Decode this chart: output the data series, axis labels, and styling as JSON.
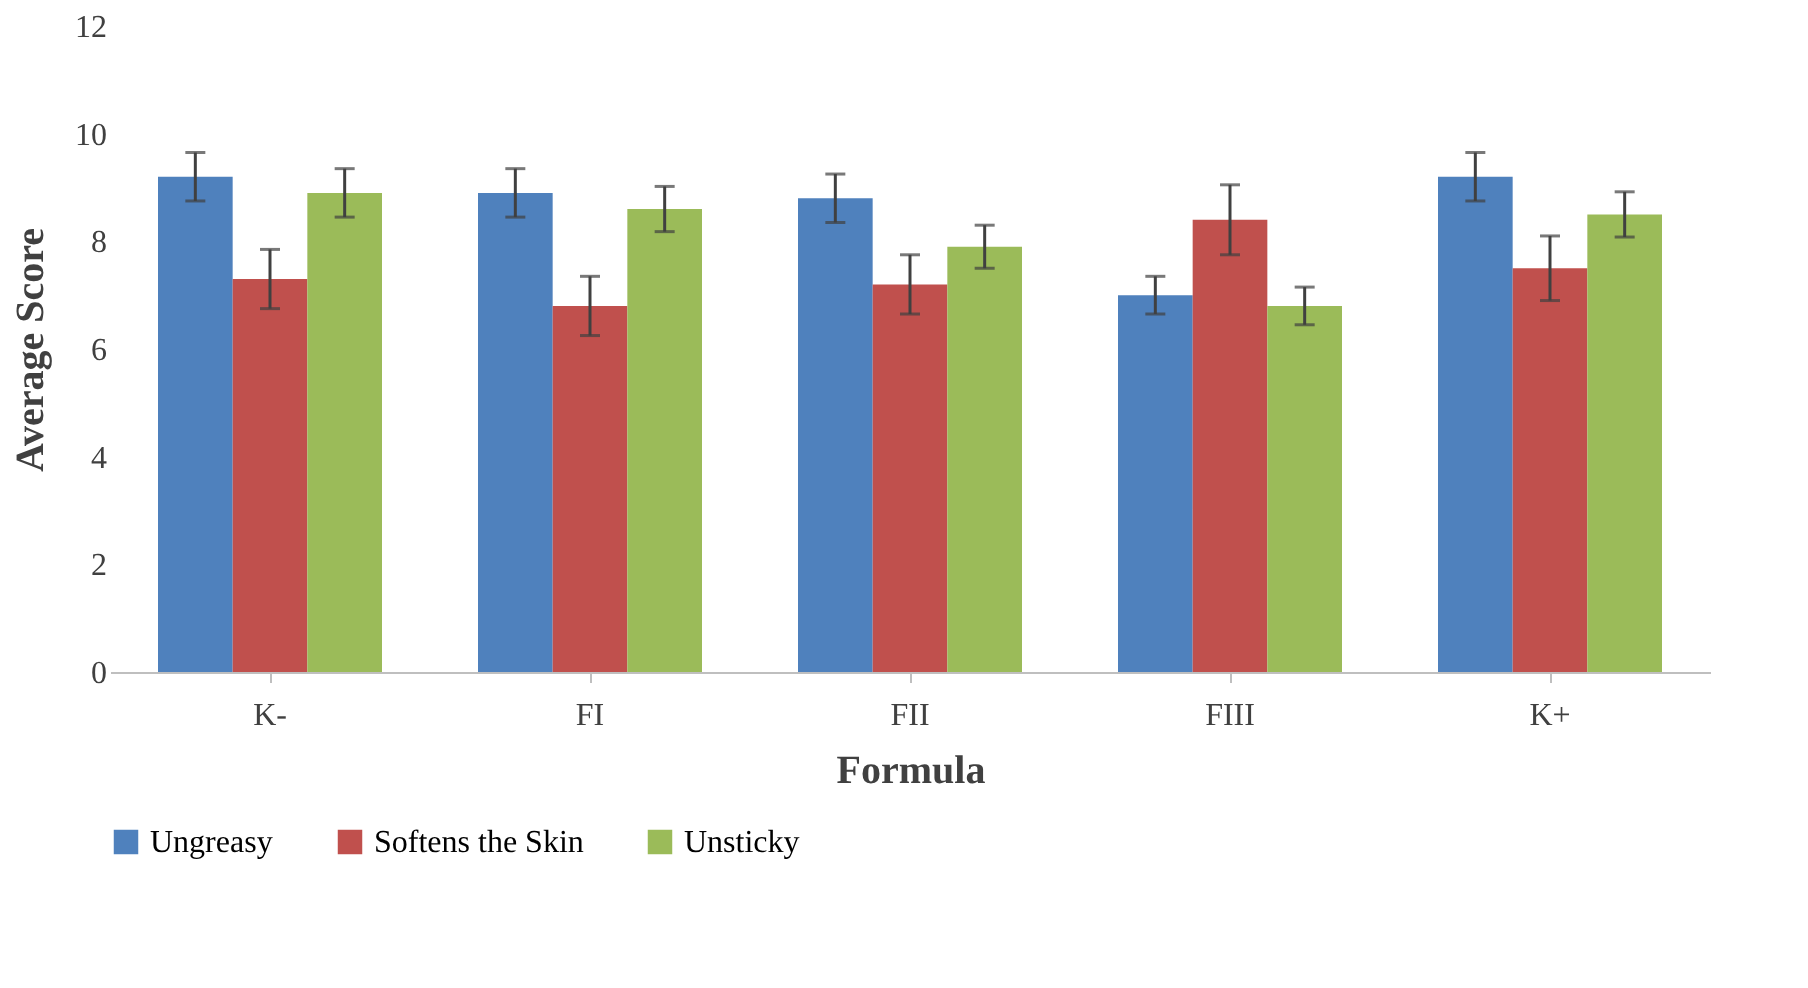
{
  "chart_data": {
    "type": "bar",
    "xlabel": "Formula",
    "ylabel": "Average Score",
    "categories": [
      "K-",
      "FI",
      "FII",
      "FIII",
      "K+"
    ],
    "series": [
      {
        "name": "Ungreasy",
        "color": "#4f81bd",
        "values": [
          9.2,
          8.9,
          8.8,
          7.0,
          9.2
        ],
        "errors": [
          0.45,
          0.45,
          0.45,
          0.35,
          0.45
        ]
      },
      {
        "name": "Softens the Skin",
        "color": "#c0504d",
        "values": [
          7.3,
          6.8,
          7.2,
          8.4,
          7.5
        ],
        "errors": [
          0.55,
          0.55,
          0.55,
          0.65,
          0.6
        ]
      },
      {
        "name": "Unsticky",
        "color": "#9bbb59",
        "values": [
          8.9,
          8.6,
          7.9,
          6.8,
          8.5
        ],
        "errors": [
          0.45,
          0.42,
          0.4,
          0.35,
          0.42
        ]
      }
    ],
    "ylim": [
      0,
      12
    ],
    "yticks": [
      0,
      2,
      4,
      6,
      8,
      10,
      12
    ],
    "grid": false,
    "legend": "bottom"
  }
}
